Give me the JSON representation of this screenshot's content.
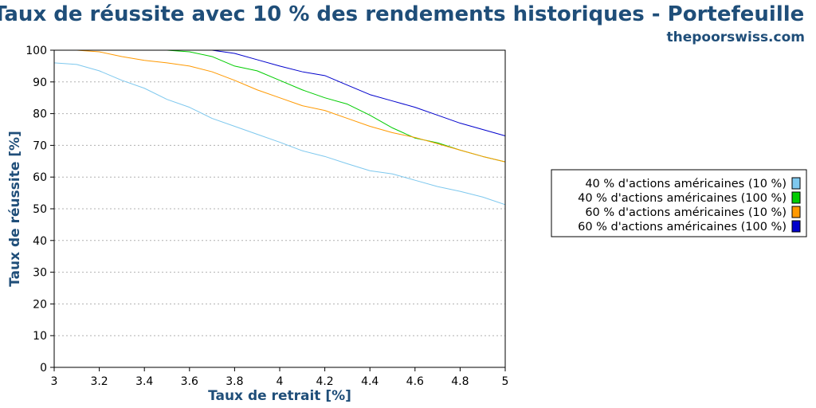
{
  "chart_data": {
    "type": "line",
    "title": "Taux de réussite avec 10 % des rendements historiques - Portefeuille",
    "subtitle": "thepoorswiss.com",
    "xlabel": "Taux de retrait [%]",
    "ylabel": "Taux de réussite [%]",
    "xlim": [
      3,
      5
    ],
    "ylim": [
      0,
      100
    ],
    "x_ticks": [
      "3",
      "3.2",
      "3.4",
      "3.6",
      "3.8",
      "4",
      "4.2",
      "4.4",
      "4.6",
      "4.8",
      "5"
    ],
    "y_ticks": [
      "0",
      "10",
      "20",
      "30",
      "40",
      "50",
      "60",
      "70",
      "80",
      "90",
      "100"
    ],
    "grid": "horizontal dotted",
    "legend_position": "right",
    "x": [
      3.0,
      3.1,
      3.2,
      3.3,
      3.4,
      3.5,
      3.6,
      3.7,
      3.8,
      3.9,
      4.0,
      4.1,
      4.2,
      4.3,
      4.4,
      4.5,
      4.6,
      4.7,
      4.8,
      4.9,
      5.0
    ],
    "series": [
      {
        "name": "40 % d'actions américaines (10 %)",
        "color": "#7ec8ee",
        "values": [
          96,
          95.5,
          93.5,
          90.5,
          88,
          84.5,
          82,
          78.5,
          76,
          73.5,
          71,
          68.3,
          66.5,
          64.2,
          62,
          61,
          59,
          57,
          55.5,
          53.7,
          51.3
        ]
      },
      {
        "name": "40 % d'actions américaines (100 %)",
        "color": "#00cc00",
        "values": [
          100,
          100,
          100,
          100,
          100,
          100,
          99.5,
          98,
          95,
          93.5,
          90.5,
          87.5,
          85,
          83,
          79.5,
          75.5,
          72.3,
          70.8,
          68.5,
          66.5,
          64.8
        ]
      },
      {
        "name": "60 % d'actions américaines (10 %)",
        "color": "#ff9900",
        "values": [
          100,
          100,
          99.5,
          98,
          96.8,
          96,
          95,
          93.2,
          90.5,
          87.5,
          85,
          82.5,
          81,
          78.5,
          76,
          74,
          72.5,
          70.5,
          68.5,
          66.5,
          64.8
        ]
      },
      {
        "name": "60 % d'actions américaines (100 %)",
        "color": "#0000cc",
        "values": [
          100,
          100,
          100,
          100,
          100,
          100,
          100,
          100,
          99,
          97,
          95,
          93.2,
          92,
          89,
          86,
          84,
          82,
          79.5,
          77,
          75,
          73
        ]
      }
    ]
  }
}
